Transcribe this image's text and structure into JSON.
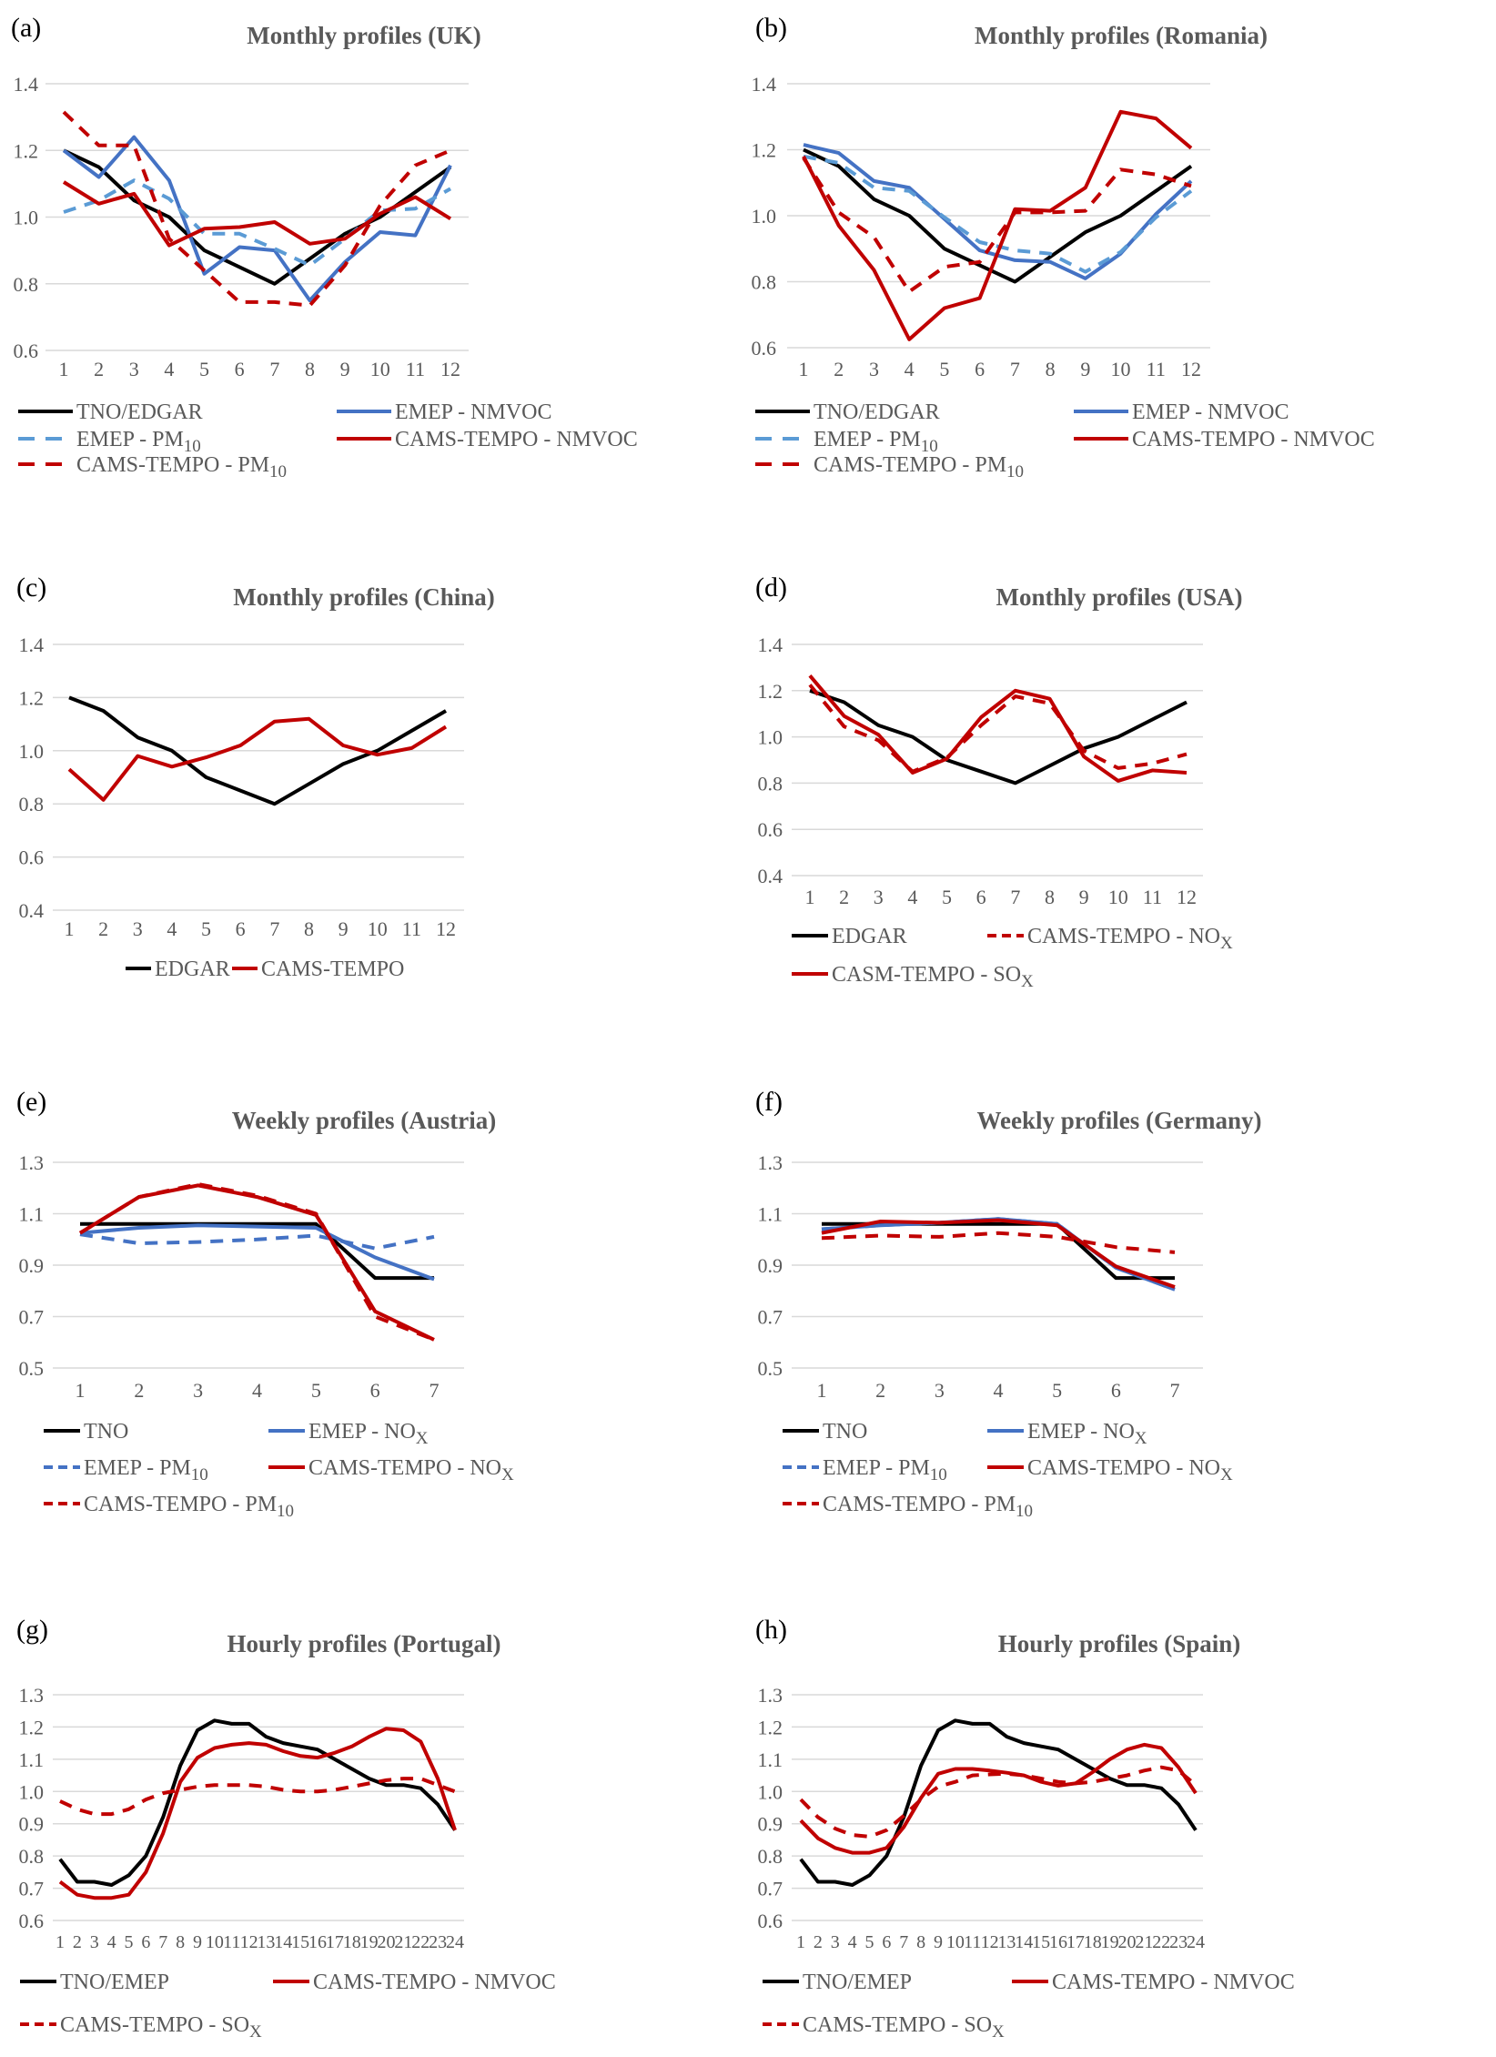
{
  "colors": {
    "black": "#000000",
    "blue": "#4472c4",
    "lightblue": "#5b9bd5",
    "red": "#c00000"
  },
  "chart_data": [
    {
      "id": "a",
      "panel_label": "(a)",
      "type": "line",
      "title": "Monthly profiles (UK)",
      "x": [
        1,
        2,
        3,
        4,
        5,
        6,
        7,
        8,
        9,
        10,
        11,
        12
      ],
      "ylim": [
        0.6,
        1.4
      ],
      "yticks": [
        "0.6",
        "0.8",
        "1.0",
        "1.2",
        "1.4"
      ],
      "grid": true,
      "legend": "bottom",
      "series": [
        {
          "name": "TNO/EDGAR",
          "sub": "",
          "color": "black",
          "dash": false,
          "values": [
            1.2,
            1.15,
            1.05,
            1.0,
            0.9,
            0.85,
            0.8,
            0.875,
            0.95,
            1.0,
            1.075,
            1.15
          ]
        },
        {
          "name": "EMEP - NMVOC",
          "sub": "",
          "color": "blue",
          "dash": false,
          "values": [
            1.2,
            1.12,
            1.24,
            1.11,
            0.83,
            0.91,
            0.9,
            0.75,
            0.865,
            0.955,
            0.945,
            1.155
          ]
        },
        {
          "name": "EMEP - PM",
          "sub": "10",
          "color": "lightblue",
          "dash": true,
          "values": [
            1.015,
            1.05,
            1.11,
            1.055,
            0.95,
            0.95,
            0.905,
            0.855,
            0.935,
            1.02,
            1.025,
            1.085
          ]
        },
        {
          "name": "CAMS-TEMPO - NMVOC",
          "sub": "",
          "color": "red",
          "dash": false,
          "values": [
            1.105,
            1.04,
            1.07,
            0.915,
            0.965,
            0.97,
            0.985,
            0.92,
            0.935,
            1.01,
            1.06,
            0.995
          ]
        },
        {
          "name": "CAMS-TEMPO - PM",
          "sub": "10",
          "color": "red",
          "dash": true,
          "values": [
            1.315,
            1.215,
            1.215,
            0.935,
            0.84,
            0.745,
            0.745,
            0.735,
            0.855,
            1.035,
            1.155,
            1.2
          ]
        }
      ]
    },
    {
      "id": "b",
      "panel_label": "(b)",
      "type": "line",
      "title": "Monthly profiles (Romania)",
      "x": [
        1,
        2,
        3,
        4,
        5,
        6,
        7,
        8,
        9,
        10,
        11,
        12
      ],
      "ylim": [
        0.6,
        1.4
      ],
      "yticks": [
        "0.6",
        "0.8",
        "1.0",
        "1.2",
        "1.4"
      ],
      "grid": true,
      "legend": "bottom",
      "series": [
        {
          "name": "TNO/EDGAR",
          "sub": "",
          "color": "black",
          "dash": false,
          "values": [
            1.2,
            1.15,
            1.05,
            1.0,
            0.9,
            0.85,
            0.8,
            0.875,
            0.95,
            1.0,
            1.075,
            1.15
          ]
        },
        {
          "name": "EMEP - NMVOC",
          "sub": "",
          "color": "blue",
          "dash": false,
          "values": [
            1.215,
            1.19,
            1.105,
            1.085,
            0.99,
            0.895,
            0.865,
            0.86,
            0.81,
            0.885,
            1.005,
            1.105
          ]
        },
        {
          "name": "EMEP - PM",
          "sub": "10",
          "color": "lightblue",
          "dash": true,
          "values": [
            1.18,
            1.16,
            1.085,
            1.075,
            0.995,
            0.92,
            0.895,
            0.885,
            0.83,
            0.89,
            0.995,
            1.075
          ]
        },
        {
          "name": "CAMS-TEMPO - NMVOC",
          "sub": "",
          "color": "red",
          "dash": false,
          "values": [
            1.18,
            0.97,
            0.835,
            0.625,
            0.72,
            0.75,
            1.02,
            1.015,
            1.085,
            1.315,
            1.295,
            1.205
          ]
        },
        {
          "name": "CAMS-TEMPO - PM",
          "sub": "10",
          "color": "red",
          "dash": true,
          "values": [
            1.175,
            1.01,
            0.935,
            0.77,
            0.845,
            0.86,
            1.01,
            1.01,
            1.015,
            1.14,
            1.125,
            1.09
          ]
        }
      ]
    },
    {
      "id": "c",
      "panel_label": "(c)",
      "type": "line",
      "title": "Monthly profiles (China)",
      "x": [
        1,
        2,
        3,
        4,
        5,
        6,
        7,
        8,
        9,
        10,
        11,
        12
      ],
      "ylim": [
        0.4,
        1.4
      ],
      "yticks": [
        "0.4",
        "0.6",
        "0.8",
        "1.0",
        "1.2",
        "1.4"
      ],
      "grid": true,
      "legend": "bottom",
      "series": [
        {
          "name": "EDGAR",
          "sub": "",
          "color": "black",
          "dash": false,
          "values": [
            1.2,
            1.15,
            1.05,
            1.0,
            0.9,
            0.85,
            0.8,
            0.875,
            0.95,
            1.0,
            1.075,
            1.15
          ]
        },
        {
          "name": "CAMS-TEMPO",
          "sub": "",
          "color": "red",
          "dash": false,
          "values": [
            0.93,
            0.815,
            0.98,
            0.94,
            0.975,
            1.02,
            1.11,
            1.12,
            1.02,
            0.985,
            1.01,
            1.09
          ]
        }
      ]
    },
    {
      "id": "d",
      "panel_label": "(d)",
      "type": "line",
      "title": "Monthly profiles (USA)",
      "x": [
        1,
        2,
        3,
        4,
        5,
        6,
        7,
        8,
        9,
        10,
        11,
        12
      ],
      "ylim": [
        0.4,
        1.4
      ],
      "yticks": [
        "0.4",
        "0.6",
        "0.8",
        "1.0",
        "1.2",
        "1.4"
      ],
      "grid": true,
      "legend": "bottom",
      "series": [
        {
          "name": "EDGAR",
          "sub": "",
          "color": "black",
          "dash": false,
          "values": [
            1.2,
            1.15,
            1.05,
            1.0,
            0.9,
            0.85,
            0.8,
            0.875,
            0.95,
            1.0,
            1.075,
            1.15
          ]
        },
        {
          "name": "CAMS-TEMPO - NO",
          "sub": "X",
          "color": "red",
          "dash": true,
          "values": [
            1.225,
            1.045,
            0.985,
            0.85,
            0.91,
            1.05,
            1.175,
            1.145,
            0.94,
            0.865,
            0.885,
            0.925
          ]
        },
        {
          "name": "CASM-TEMPO - SO",
          "sub": "X",
          "color": "red",
          "dash": false,
          "values": [
            1.265,
            1.09,
            1.01,
            0.845,
            0.905,
            1.085,
            1.2,
            1.165,
            0.915,
            0.81,
            0.855,
            0.845
          ]
        }
      ]
    },
    {
      "id": "e",
      "panel_label": "(e)",
      "type": "line",
      "title": "Weekly profiles (Austria)",
      "x": [
        1,
        2,
        3,
        4,
        5,
        6,
        7
      ],
      "ylim": [
        0.5,
        1.3
      ],
      "yticks": [
        "0.5",
        "0.7",
        "0.9",
        "1.1",
        "1.3"
      ],
      "grid": true,
      "legend": "bottom",
      "series": [
        {
          "name": "TNO",
          "sub": "",
          "color": "black",
          "dash": false,
          "values": [
            1.06,
            1.06,
            1.06,
            1.06,
            1.06,
            0.85,
            0.85
          ]
        },
        {
          "name": "EMEP - NO",
          "sub": "X",
          "color": "blue",
          "dash": false,
          "values": [
            1.025,
            1.045,
            1.055,
            1.05,
            1.045,
            0.93,
            0.845
          ]
        },
        {
          "name": "EMEP - PM",
          "sub": "10",
          "color": "blue",
          "dash": true,
          "values": [
            1.02,
            0.985,
            0.99,
            1.0,
            1.015,
            0.965,
            1.01
          ]
        },
        {
          "name": "CAMS-TEMPO - NO",
          "sub": "X",
          "color": "red",
          "dash": false,
          "values": [
            1.025,
            1.165,
            1.21,
            1.165,
            1.095,
            0.72,
            0.61
          ]
        },
        {
          "name": "CAMS-TEMPO - PM",
          "sub": "10",
          "color": "red",
          "dash": true,
          "values": [
            1.025,
            1.165,
            1.215,
            1.17,
            1.1,
            0.7,
            0.61
          ]
        }
      ]
    },
    {
      "id": "f",
      "panel_label": "(f)",
      "type": "line",
      "title": "Weekly profiles (Germany)",
      "x": [
        1,
        2,
        3,
        4,
        5,
        6,
        7
      ],
      "ylim": [
        0.5,
        1.3
      ],
      "yticks": [
        "0.5",
        "0.7",
        "0.9",
        "1.1",
        "1.3"
      ],
      "grid": true,
      "legend": "bottom",
      "series": [
        {
          "name": "TNO",
          "sub": "",
          "color": "black",
          "dash": false,
          "values": [
            1.06,
            1.06,
            1.06,
            1.06,
            1.06,
            0.85,
            0.85
          ]
        },
        {
          "name": "EMEP - NO",
          "sub": "X",
          "color": "blue",
          "dash": false,
          "values": [
            1.04,
            1.055,
            1.065,
            1.08,
            1.06,
            0.89,
            0.805
          ]
        },
        {
          "name": "EMEP - PM",
          "sub": "10",
          "color": "blue",
          "dash": true,
          "values": [
            1.04,
            1.055,
            1.065,
            1.08,
            1.06,
            0.89,
            0.805
          ]
        },
        {
          "name": "CAMS-TEMPO - NO",
          "sub": "X",
          "color": "red",
          "dash": false,
          "values": [
            1.025,
            1.07,
            1.065,
            1.075,
            1.055,
            0.895,
            0.815
          ]
        },
        {
          "name": "CAMS-TEMPO - PM",
          "sub": "10",
          "color": "red",
          "dash": true,
          "values": [
            1.005,
            1.015,
            1.01,
            1.025,
            1.01,
            0.97,
            0.95
          ]
        }
      ]
    },
    {
      "id": "g",
      "panel_label": "(g)",
      "type": "line",
      "title": "Hourly profiles (Portugal)",
      "x": [
        1,
        2,
        3,
        4,
        5,
        6,
        7,
        8,
        9,
        10,
        11,
        12,
        13,
        14,
        15,
        16,
        17,
        18,
        19,
        20,
        21,
        22,
        23,
        24
      ],
      "ylim": [
        0.6,
        1.3
      ],
      "yticks": [
        "0.6",
        "0.7",
        "0.8",
        "0.9",
        "1.0",
        "1.1",
        "1.2",
        "1.3"
      ],
      "grid": true,
      "legend": "bottom",
      "series": [
        {
          "name": "TNO/EMEP",
          "sub": "",
          "color": "black",
          "dash": false,
          "values": [
            0.79,
            0.72,
            0.72,
            0.71,
            0.74,
            0.8,
            0.92,
            1.08,
            1.19,
            1.22,
            1.21,
            1.21,
            1.17,
            1.15,
            1.14,
            1.13,
            1.1,
            1.07,
            1.04,
            1.02,
            1.02,
            1.01,
            0.96,
            0.88
          ]
        },
        {
          "name": "CAMS-TEMPO - NMVOC",
          "sub": "",
          "color": "red",
          "dash": false,
          "values": [
            0.72,
            0.68,
            0.67,
            0.67,
            0.68,
            0.75,
            0.87,
            1.03,
            1.105,
            1.135,
            1.145,
            1.15,
            1.145,
            1.125,
            1.11,
            1.105,
            1.12,
            1.14,
            1.17,
            1.195,
            1.19,
            1.155,
            1.04,
            0.88
          ]
        },
        {
          "name": "CAMS-TEMPO - SO",
          "sub": "X",
          "color": "red",
          "dash": true,
          "values": [
            0.97,
            0.945,
            0.93,
            0.93,
            0.945,
            0.975,
            0.995,
            1.005,
            1.015,
            1.02,
            1.02,
            1.02,
            1.015,
            1.005,
            1.0,
            1.0,
            1.005,
            1.015,
            1.025,
            1.035,
            1.04,
            1.04,
            1.02,
            1.0
          ]
        }
      ]
    },
    {
      "id": "h",
      "panel_label": "(h)",
      "type": "line",
      "title": "Hourly profiles (Spain)",
      "x": [
        1,
        2,
        3,
        4,
        5,
        6,
        7,
        8,
        9,
        10,
        11,
        12,
        13,
        14,
        15,
        16,
        17,
        18,
        19,
        20,
        21,
        22,
        23,
        24
      ],
      "ylim": [
        0.6,
        1.3
      ],
      "yticks": [
        "0.6",
        "0.7",
        "0.8",
        "0.9",
        "1.0",
        "1.1",
        "1.2",
        "1.3"
      ],
      "grid": true,
      "legend": "bottom",
      "series": [
        {
          "name": "TNO/EMEP",
          "sub": "",
          "color": "black",
          "dash": false,
          "values": [
            0.79,
            0.72,
            0.72,
            0.71,
            0.74,
            0.8,
            0.92,
            1.08,
            1.19,
            1.22,
            1.21,
            1.21,
            1.17,
            1.15,
            1.14,
            1.13,
            1.1,
            1.07,
            1.04,
            1.02,
            1.02,
            1.01,
            0.96,
            0.88
          ]
        },
        {
          "name": "CAMS-TEMPO - NMVOC",
          "sub": "",
          "color": "red",
          "dash": false,
          "values": [
            0.91,
            0.855,
            0.825,
            0.81,
            0.81,
            0.825,
            0.89,
            0.98,
            1.055,
            1.07,
            1.07,
            1.065,
            1.058,
            1.05,
            1.03,
            1.018,
            1.025,
            1.06,
            1.1,
            1.13,
            1.145,
            1.135,
            1.075,
            0.995
          ]
        },
        {
          "name": "CAMS-TEMPO - SO",
          "sub": "X",
          "color": "red",
          "dash": true,
          "values": [
            0.975,
            0.92,
            0.885,
            0.865,
            0.86,
            0.88,
            0.925,
            0.975,
            1.015,
            1.03,
            1.05,
            1.053,
            1.055,
            1.05,
            1.04,
            1.03,
            1.025,
            1.03,
            1.04,
            1.05,
            1.065,
            1.075,
            1.065,
            1.02
          ]
        }
      ]
    }
  ]
}
